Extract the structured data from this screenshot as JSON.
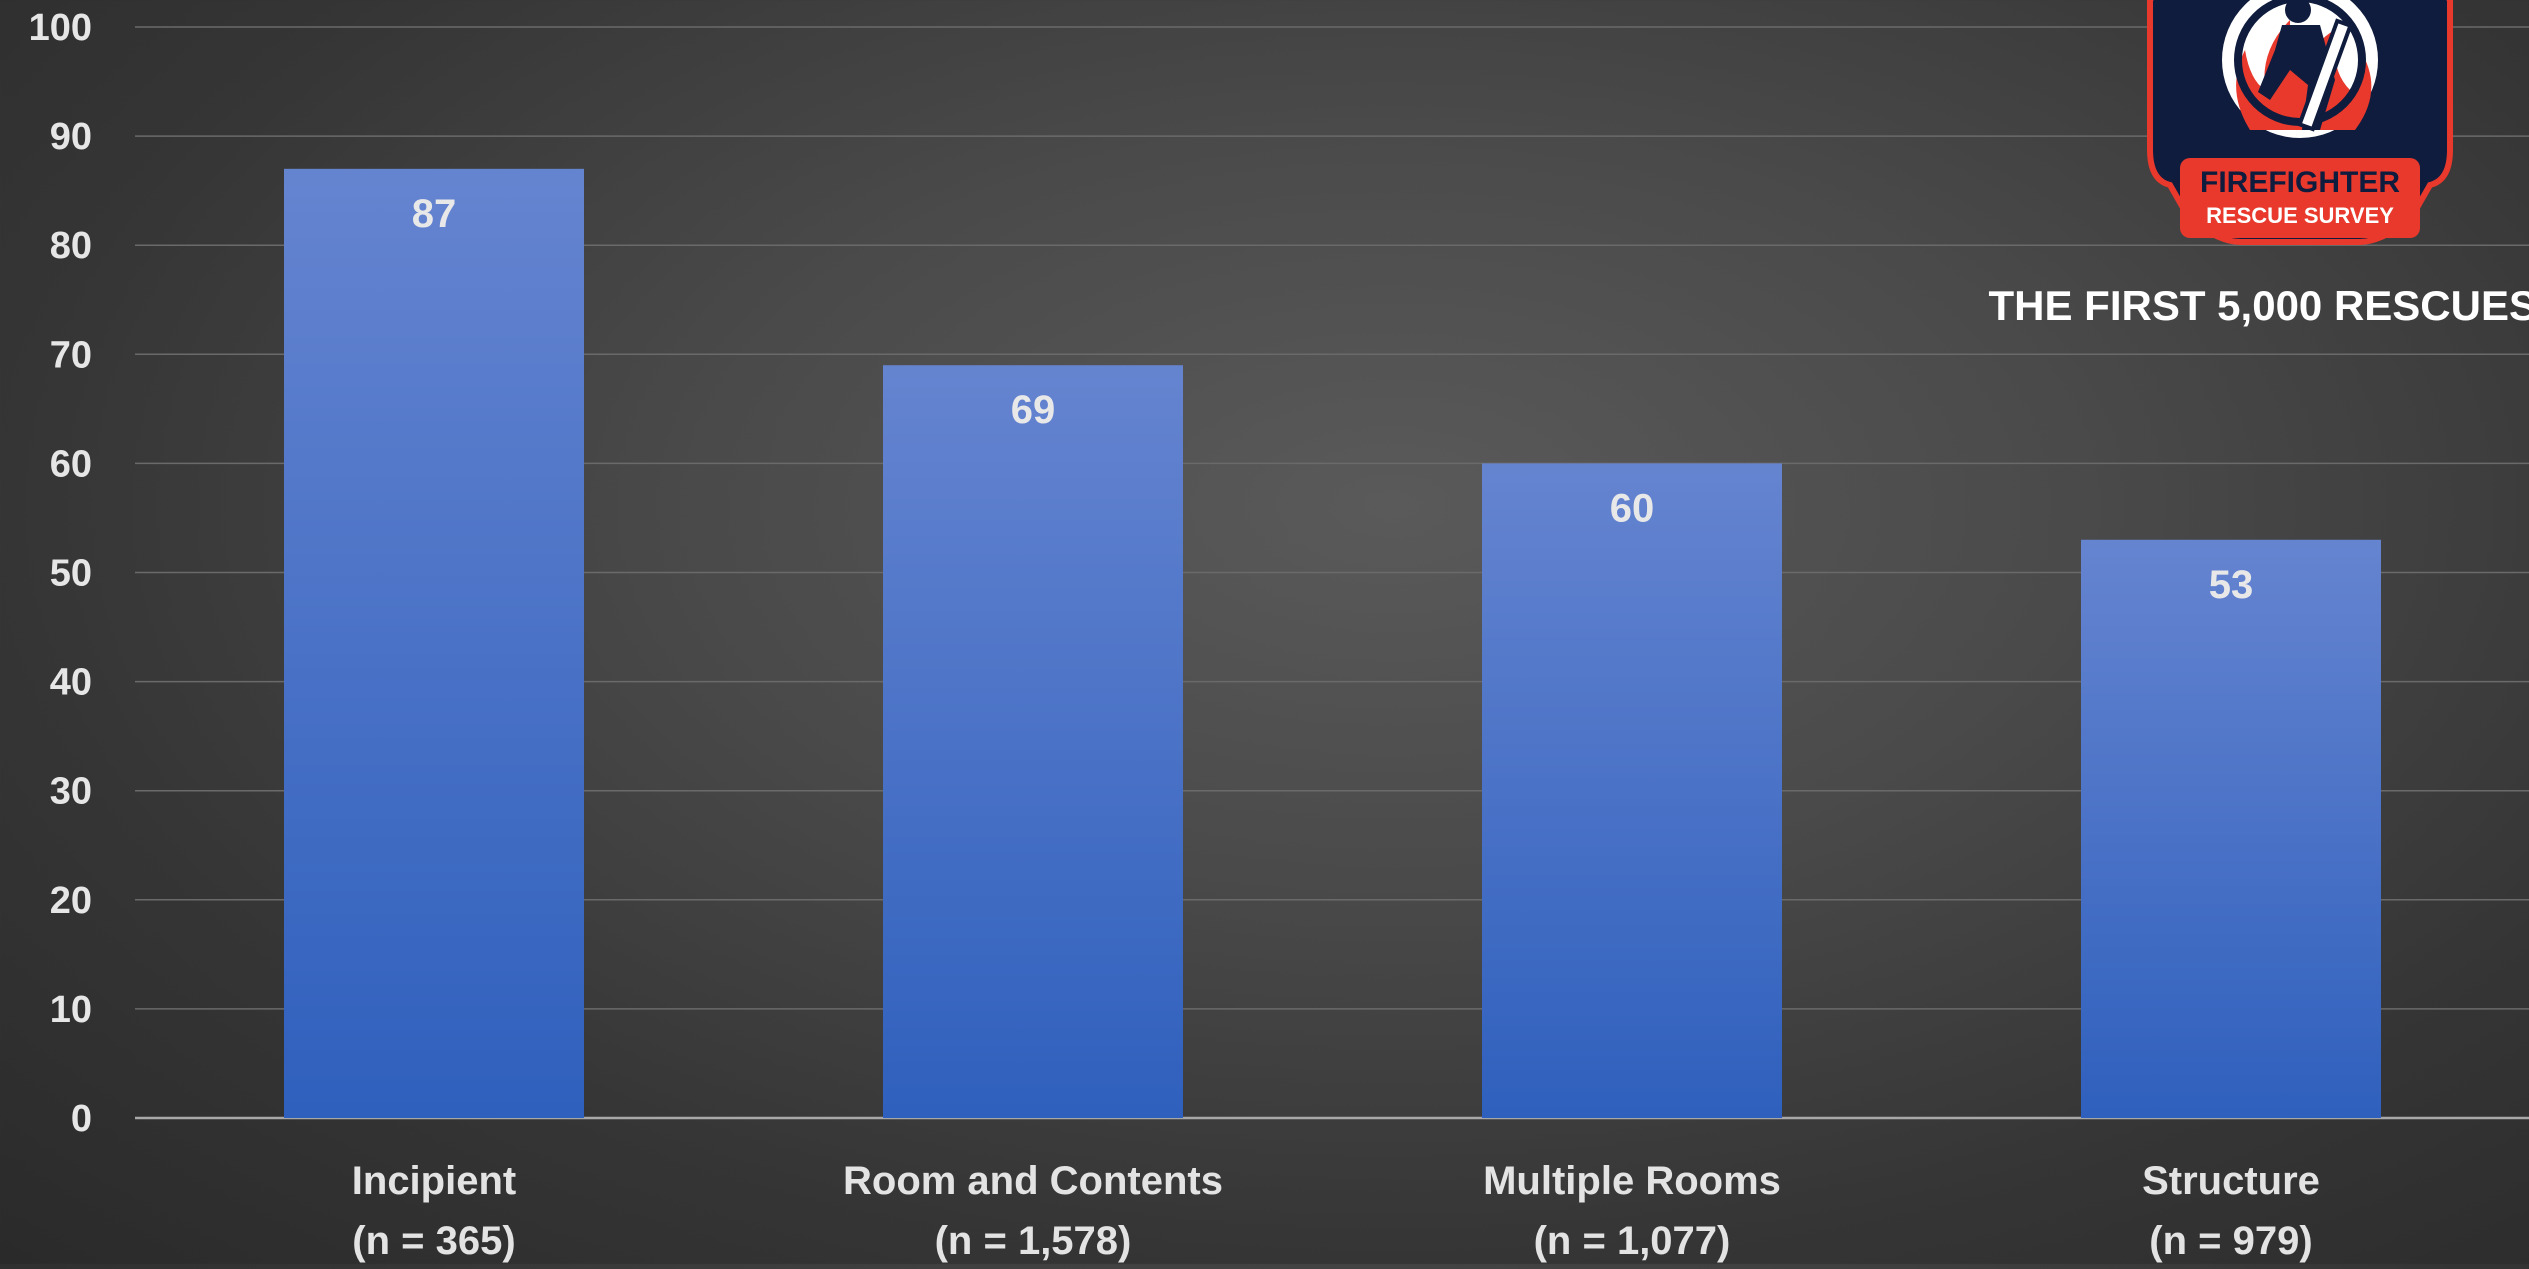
{
  "logo": {
    "line1": "FIREFIGHTER",
    "line2": "RESCUE SURVEY",
    "subtitle": "THE FIRST 5,000 RESCUES"
  },
  "colors": {
    "bar_top": "#6584d0",
    "bar_bottom": "#2f60bd",
    "badge_navy": "#0f1c3d",
    "badge_red": "#e8392c"
  },
  "chart_data": {
    "type": "bar",
    "categories": [
      [
        "Incipient",
        "(n = 365)"
      ],
      [
        "Room and Contents",
        "(n = 1,578)"
      ],
      [
        "Multiple Rooms",
        "(n = 1,077)"
      ],
      [
        "Structure",
        "(n = 979)"
      ]
    ],
    "values": [
      87,
      69,
      60,
      53
    ],
    "data_labels": [
      "87",
      "69",
      "60",
      "53"
    ],
    "ylim": [
      0,
      100
    ],
    "yticks": [
      "0",
      "10",
      "20",
      "30",
      "40",
      "50",
      "60",
      "70",
      "80",
      "90",
      "100"
    ],
    "grid": true
  }
}
